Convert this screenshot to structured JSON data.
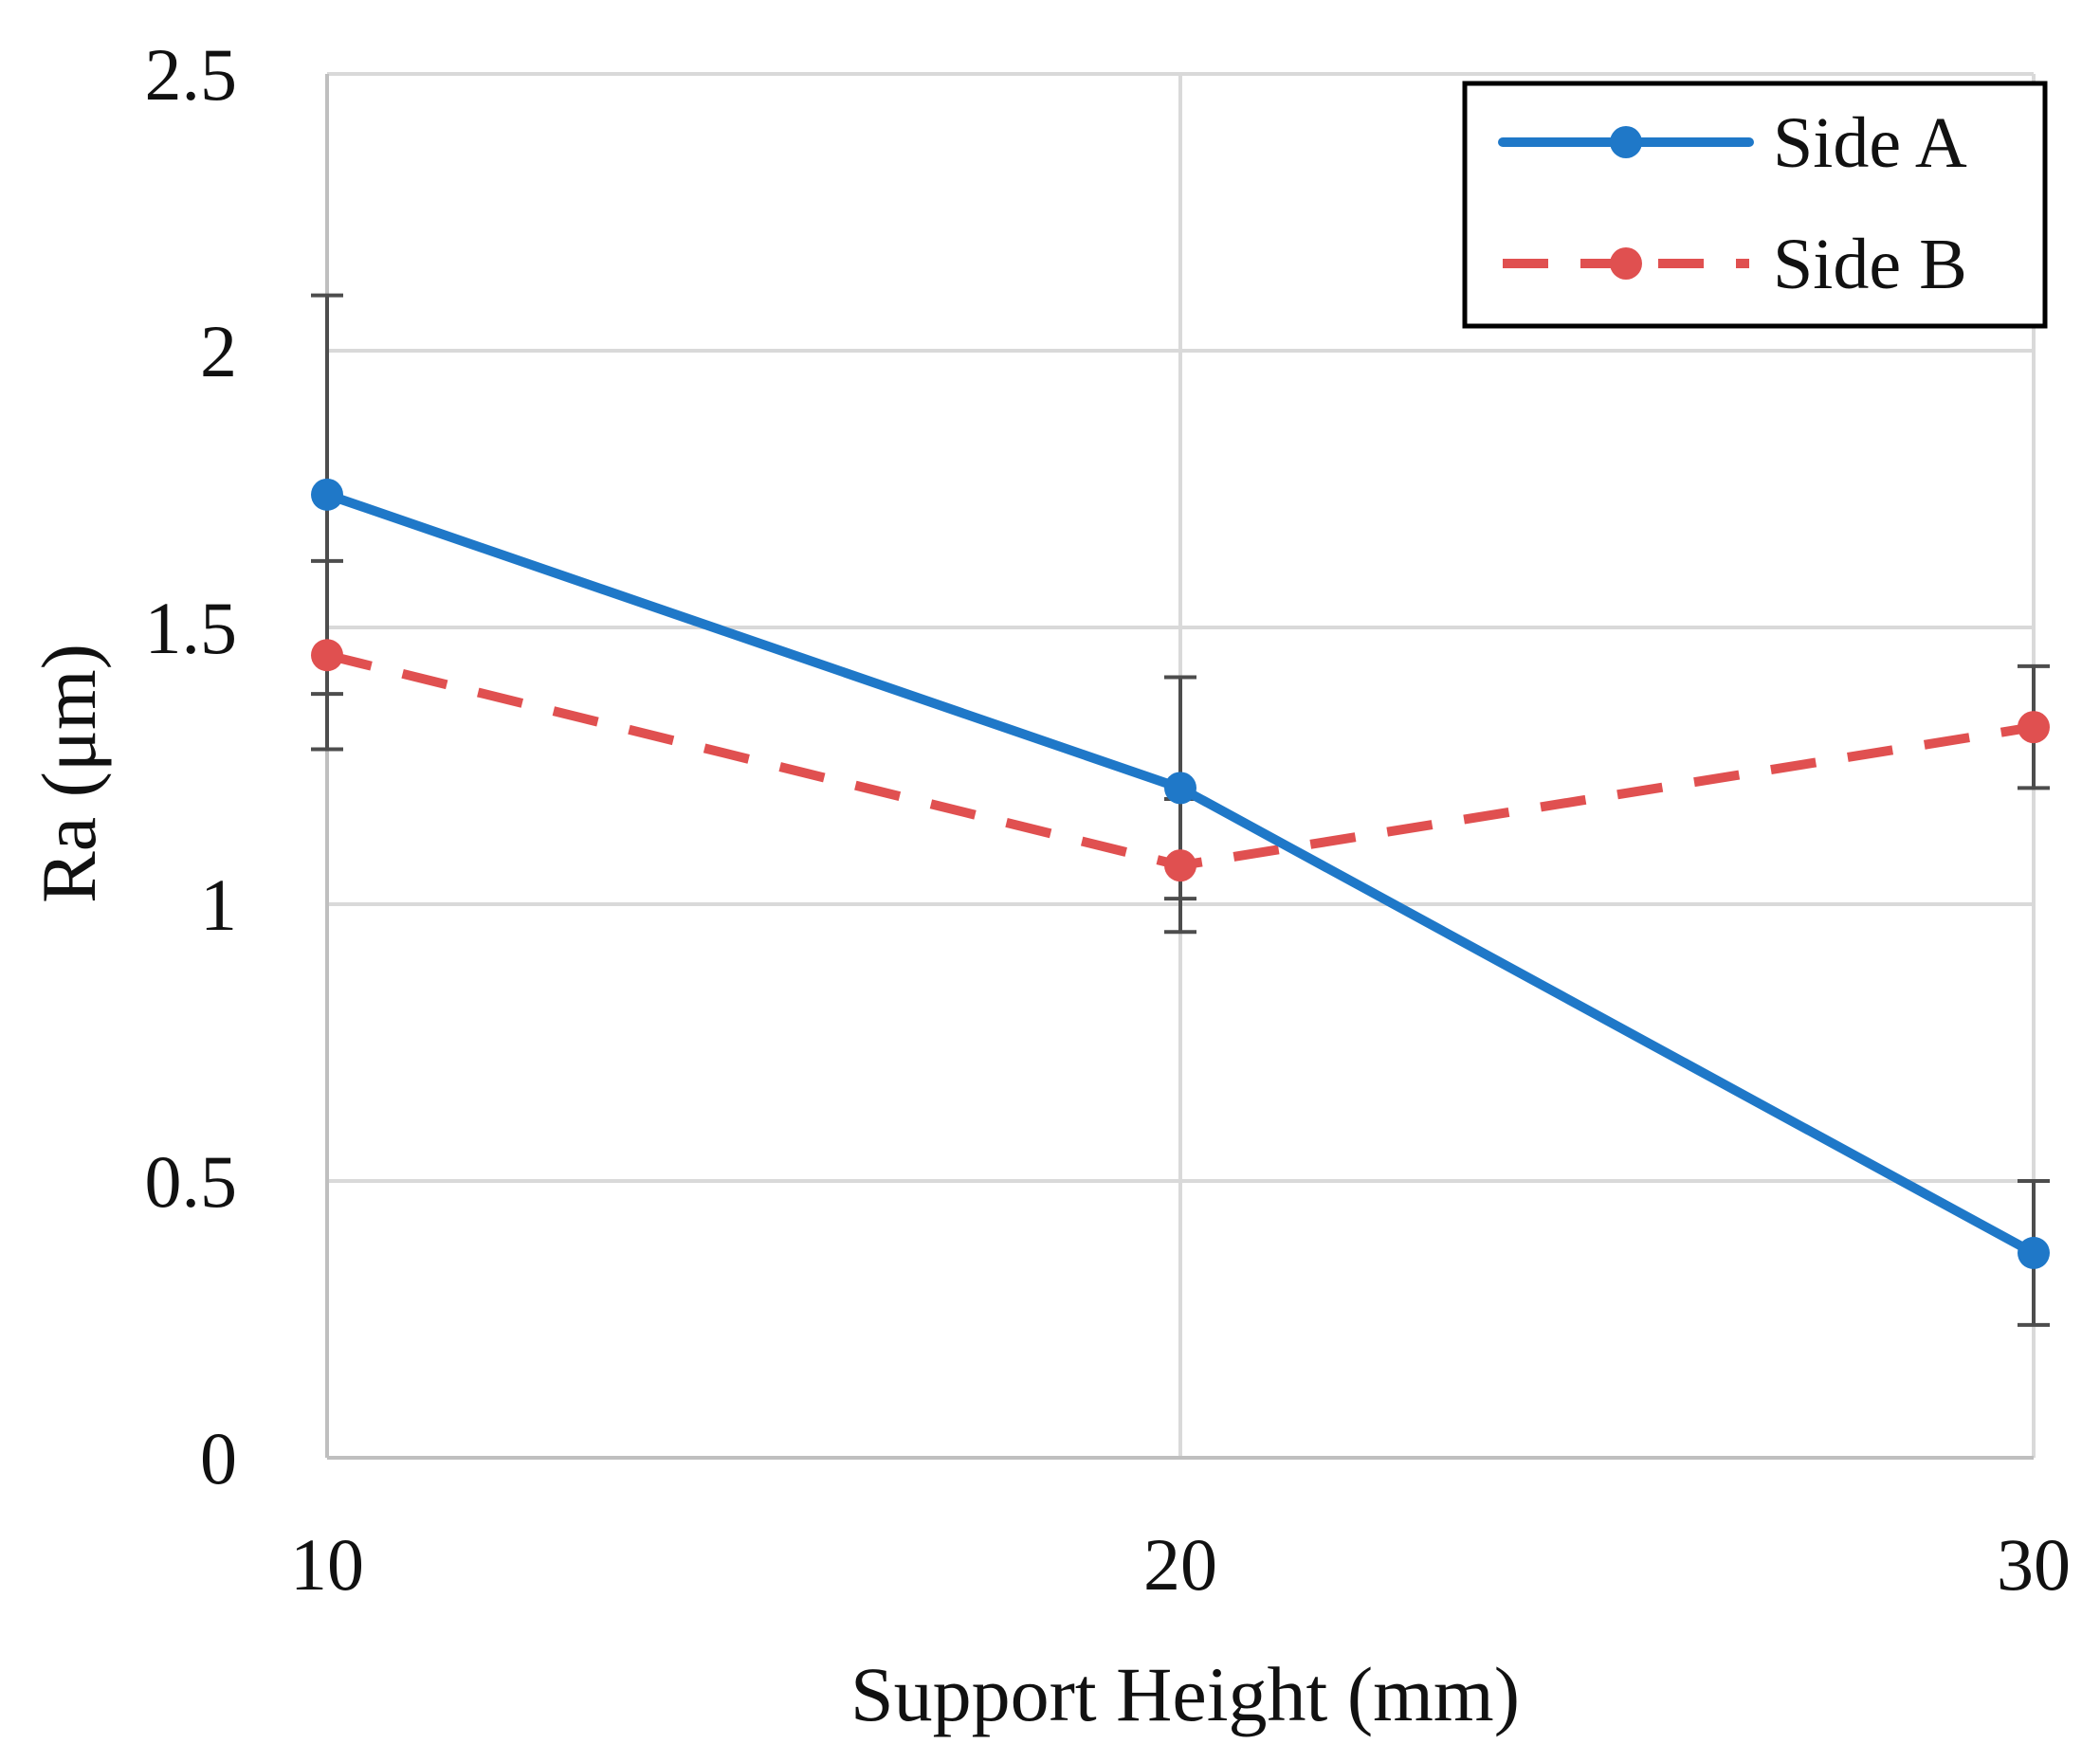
{
  "chart_data": {
    "type": "line",
    "title": "",
    "xlabel": "Support Height (mm)",
    "ylabel": "Ra (μm)",
    "x": [
      10,
      20,
      30
    ],
    "xlim": [
      10,
      30
    ],
    "ylim": [
      0,
      2.5
    ],
    "x_ticks": [
      "10",
      "20",
      "30"
    ],
    "y_ticks": [
      "0",
      "0.5",
      "1",
      "1.5",
      "2",
      "2.5"
    ],
    "grid": true,
    "legend_position": "top-right",
    "series": [
      {
        "name": "Side A",
        "values": [
          1.74,
          1.21,
          0.37
        ],
        "error": [
          0.36,
          0.2,
          0.13
        ],
        "color": "#1f78c8",
        "style": "solid"
      },
      {
        "name": "Side B",
        "values": [
          1.45,
          1.07,
          1.32
        ],
        "error": [
          0.17,
          0.12,
          0.11
        ],
        "color": "#e05050",
        "style": "dashed"
      }
    ]
  },
  "colors": {
    "grid": "#d9d9d9",
    "axis": "#bfbfbf",
    "error_bar": "#4d4d4d",
    "legend_border": "#000000"
  }
}
